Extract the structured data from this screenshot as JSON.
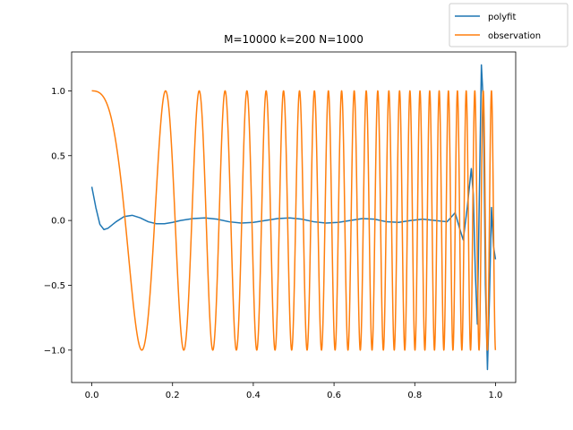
{
  "chart_data": {
    "type": "line",
    "title": "M=10000 k=200 N=1000",
    "xlabel": "",
    "ylabel": "",
    "xlim": [
      -0.05,
      1.05
    ],
    "ylim": [
      -1.25,
      1.3
    ],
    "x_ticks": [
      0.0,
      0.2,
      0.4,
      0.6,
      0.8,
      1.0
    ],
    "x_tick_labels": [
      "0.0",
      "0.2",
      "0.4",
      "0.6",
      "0.8",
      "1.0"
    ],
    "y_ticks": [
      -1.0,
      -0.5,
      0.0,
      0.5,
      1.0
    ],
    "y_tick_labels": [
      "−1.0",
      "−0.5",
      "0.0",
      "0.5",
      "1.0"
    ],
    "grid": false,
    "legend_position": "figure top-right",
    "series": [
      {
        "name": "polyfit",
        "color": "#1f77b4",
        "x": [
          0.0,
          0.01,
          0.02,
          0.03,
          0.04,
          0.06,
          0.08,
          0.1,
          0.12,
          0.14,
          0.16,
          0.18,
          0.2,
          0.22,
          0.25,
          0.28,
          0.31,
          0.34,
          0.37,
          0.4,
          0.43,
          0.46,
          0.49,
          0.52,
          0.55,
          0.58,
          0.61,
          0.64,
          0.67,
          0.7,
          0.73,
          0.76,
          0.79,
          0.82,
          0.85,
          0.88,
          0.9,
          0.91,
          0.92,
          0.93,
          0.94,
          0.945,
          0.95,
          0.955,
          0.96,
          0.965,
          0.97,
          0.975,
          0.98,
          0.985,
          0.99,
          0.995,
          1.0
        ],
        "y": [
          0.26,
          0.1,
          -0.03,
          -0.07,
          -0.06,
          -0.01,
          0.03,
          0.04,
          0.02,
          -0.01,
          -0.025,
          -0.025,
          -0.015,
          0.0,
          0.015,
          0.02,
          0.01,
          -0.01,
          -0.02,
          -0.015,
          0.0,
          0.015,
          0.02,
          0.01,
          -0.01,
          -0.02,
          -0.015,
          0.0,
          0.015,
          0.01,
          -0.01,
          -0.015,
          0.0,
          0.01,
          0.0,
          -0.01,
          0.06,
          -0.05,
          -0.15,
          0.1,
          0.4,
          0.2,
          -0.4,
          -0.8,
          0.2,
          1.2,
          0.9,
          -0.5,
          -1.15,
          -0.6,
          0.1,
          -0.2,
          -0.3
        ]
      },
      {
        "name": "observation",
        "color": "#ff7f0e",
        "x_range": [
          0.0,
          1.0
        ],
        "amplitude": 1.0,
        "cycles_start": 1.0,
        "cycles_end": 50.0
      }
    ]
  }
}
